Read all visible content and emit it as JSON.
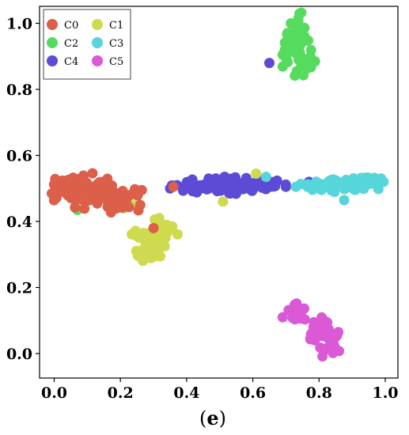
{
  "caption": {
    "prefix": "(",
    "letter": "e",
    "suffix": ")"
  },
  "chart_data": {
    "type": "scatter",
    "xlim": [
      -0.05,
      1.05
    ],
    "ylim": [
      -0.05,
      1.05
    ],
    "x_ticks": [
      "0.0",
      "0.2",
      "0.4",
      "0.6",
      "0.8",
      "1.0"
    ],
    "y_ticks": [
      "0.0",
      "0.2",
      "0.4",
      "0.6",
      "0.8",
      "1.0"
    ],
    "grid": false,
    "legend_position": "top-left",
    "legend_columns": 2,
    "series": [
      {
        "name": "C0",
        "color": "#DB5F49",
        "clusters": [
          {
            "cx": 0.04,
            "cy": 0.5,
            "sx": 0.025,
            "sy": 0.02,
            "n": 45
          },
          {
            "cx": 0.12,
            "cy": 0.49,
            "sx": 0.035,
            "sy": 0.022,
            "n": 45
          },
          {
            "cx": 0.2,
            "cy": 0.465,
            "sx": 0.03,
            "sy": 0.015,
            "n": 30
          }
        ],
        "points": [
          {
            "x": 0.26,
            "y": 0.45
          },
          {
            "x": 0.36,
            "y": 0.505
          },
          {
            "x": 0.3,
            "y": 0.38
          }
        ]
      },
      {
        "name": "C1",
        "color": "#CFDA4F",
        "clusters": [
          {
            "cx": 0.31,
            "cy": 0.36,
            "sx": 0.03,
            "sy": 0.025,
            "n": 45
          },
          {
            "cx": 0.29,
            "cy": 0.32,
            "sx": 0.02,
            "sy": 0.02,
            "n": 30
          }
        ],
        "points": [
          {
            "x": 0.21,
            "y": 0.44
          },
          {
            "x": 0.51,
            "y": 0.46
          },
          {
            "x": 0.24,
            "y": 0.45
          },
          {
            "x": 0.61,
            "y": 0.545
          }
        ]
      },
      {
        "name": "C2",
        "color": "#55DC5E",
        "clusters": [
          {
            "cx": 0.73,
            "cy": 0.96,
            "sx": 0.018,
            "sy": 0.03,
            "n": 35
          },
          {
            "cx": 0.74,
            "cy": 0.89,
            "sx": 0.02,
            "sy": 0.025,
            "n": 30
          }
        ],
        "points": [
          {
            "x": 0.07,
            "y": 0.435
          },
          {
            "x": 0.69,
            "y": 0.905
          },
          {
            "x": 0.715,
            "y": 1.0
          }
        ]
      },
      {
        "name": "C3",
        "color": "#56D5DA",
        "clusters": [
          {
            "cx": 0.82,
            "cy": 0.51,
            "sx": 0.035,
            "sy": 0.012,
            "n": 30
          },
          {
            "cx": 0.93,
            "cy": 0.515,
            "sx": 0.035,
            "sy": 0.012,
            "n": 40
          }
        ],
        "points": [
          {
            "x": 0.64,
            "y": 0.535
          },
          {
            "x": 0.995,
            "y": 0.52
          },
          {
            "x": 0.73,
            "y": 0.505
          }
        ]
      },
      {
        "name": "C4",
        "color": "#5B4BD5",
        "clusters": [
          {
            "cx": 0.42,
            "cy": 0.505,
            "sx": 0.035,
            "sy": 0.01,
            "n": 35
          },
          {
            "cx": 0.52,
            "cy": 0.51,
            "sx": 0.04,
            "sy": 0.015,
            "n": 60
          },
          {
            "cx": 0.63,
            "cy": 0.51,
            "sx": 0.03,
            "sy": 0.01,
            "n": 35
          }
        ],
        "points": [
          {
            "x": 0.65,
            "y": 0.88
          },
          {
            "x": 0.77,
            "y": 0.52
          },
          {
            "x": 0.35,
            "y": 0.5
          },
          {
            "x": 0.7,
            "y": 0.505
          }
        ]
      },
      {
        "name": "C5",
        "color": "#DA59D6",
        "clusters": [
          {
            "cx": 0.74,
            "cy": 0.12,
            "sx": 0.02,
            "sy": 0.015,
            "n": 20
          },
          {
            "cx": 0.81,
            "cy": 0.06,
            "sx": 0.025,
            "sy": 0.025,
            "n": 35
          },
          {
            "cx": 0.84,
            "cy": 0.03,
            "sx": 0.012,
            "sy": 0.02,
            "n": 15
          }
        ],
        "points": [
          {
            "x": 0.69,
            "y": 0.11
          }
        ]
      }
    ]
  }
}
